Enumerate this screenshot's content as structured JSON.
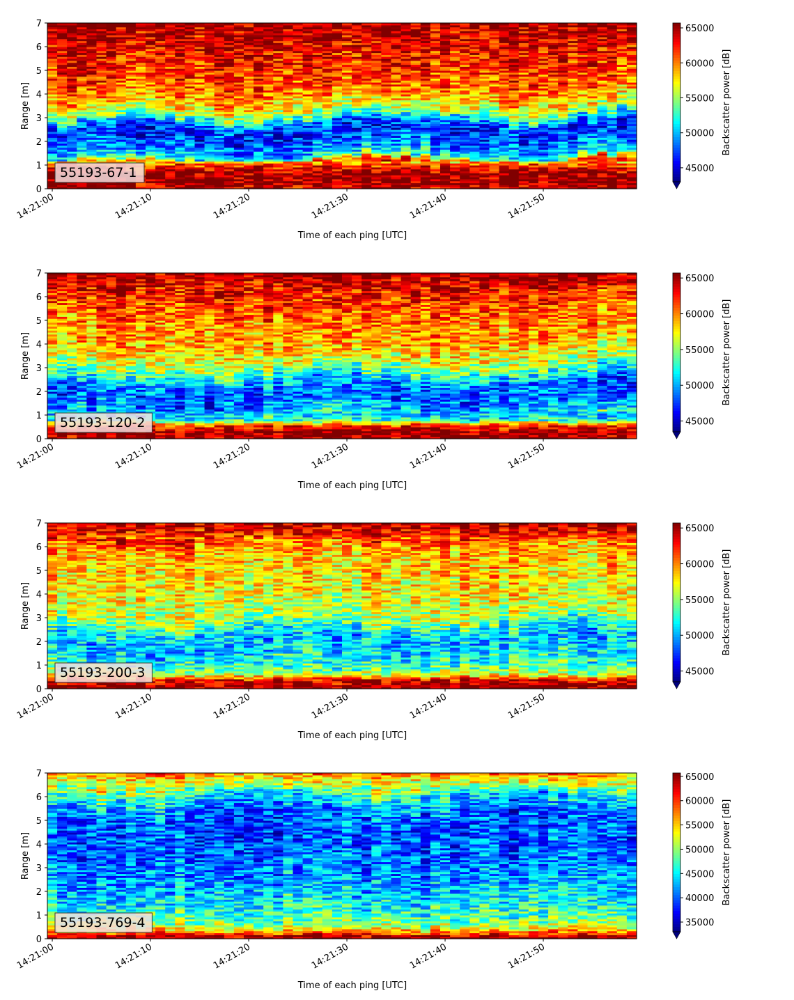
{
  "figure": {
    "panel_count": 4
  },
  "chart_data": [
    {
      "type": "heatmap",
      "annotation": "55193-67-1",
      "xlabel": "Time of each ping [UTC]",
      "ylabel": "Range [m]",
      "x_ticks": [
        "14:21:00",
        "14:21:10",
        "14:21:20",
        "14:21:30",
        "14:21:40",
        "14:21:50"
      ],
      "x_range": [
        "14:20:59.5",
        "14:21:59.5"
      ],
      "ylim": [
        0,
        7
      ],
      "y_ticks": [
        0,
        1,
        2,
        3,
        4,
        5,
        6,
        7
      ],
      "colormap": "jet",
      "colorbar": {
        "label": "Backscatter power [dB]",
        "min": 43000,
        "max": 65700,
        "ticks": [
          45000,
          50000,
          55000,
          60000,
          65000
        ],
        "extend": "min"
      },
      "profile": [
        {
          "range": 0.1,
          "level": 0.94
        },
        {
          "range": 0.3,
          "level": 0.99
        },
        {
          "range": 0.6,
          "level": 0.98
        },
        {
          "range": 0.9,
          "level": 0.9
        },
        {
          "range": 1.1,
          "level": 0.75
        },
        {
          "range": 1.3,
          "level": 0.42
        },
        {
          "range": 1.6,
          "level": 0.3
        },
        {
          "range": 2.0,
          "level": 0.22
        },
        {
          "range": 2.4,
          "level": 0.15
        },
        {
          "range": 2.8,
          "level": 0.22
        },
        {
          "range": 3.2,
          "level": 0.52
        },
        {
          "range": 3.8,
          "level": 0.7
        },
        {
          "range": 4.5,
          "level": 0.8
        },
        {
          "range": 5.5,
          "level": 0.86
        },
        {
          "range": 6.5,
          "level": 0.93
        },
        {
          "range": 7.0,
          "level": 0.97
        }
      ],
      "layer_tilt": 0.4
    },
    {
      "type": "heatmap",
      "annotation": "55193-120-2",
      "xlabel": "Time of each ping [UTC]",
      "ylabel": "Range [m]",
      "x_ticks": [
        "14:21:00",
        "14:21:10",
        "14:21:20",
        "14:21:30",
        "14:21:40",
        "14:21:50"
      ],
      "x_range": [
        "14:20:59.5",
        "14:21:59.5"
      ],
      "ylim": [
        0,
        7
      ],
      "y_ticks": [
        0,
        1,
        2,
        3,
        4,
        5,
        6,
        7
      ],
      "colormap": "jet",
      "colorbar": {
        "label": "Backscatter power [dB]",
        "min": 43500,
        "max": 65700,
        "ticks": [
          45000,
          50000,
          55000,
          60000,
          65000
        ],
        "extend": "min"
      },
      "profile": [
        {
          "range": 0.1,
          "level": 0.97
        },
        {
          "range": 0.3,
          "level": 0.99
        },
        {
          "range": 0.55,
          "level": 0.86
        },
        {
          "range": 0.8,
          "level": 0.4
        },
        {
          "range": 1.2,
          "level": 0.3
        },
        {
          "range": 1.7,
          "level": 0.22
        },
        {
          "range": 2.2,
          "level": 0.22
        },
        {
          "range": 2.7,
          "level": 0.4
        },
        {
          "range": 3.2,
          "level": 0.58
        },
        {
          "range": 4.0,
          "level": 0.7
        },
        {
          "range": 5.0,
          "level": 0.75
        },
        {
          "range": 6.0,
          "level": 0.84
        },
        {
          "range": 7.0,
          "level": 0.97
        }
      ],
      "layer_tilt": 0.35
    },
    {
      "type": "heatmap",
      "annotation": "55193-200-3",
      "xlabel": "Time of each ping [UTC]",
      "ylabel": "Range [m]",
      "x_ticks": [
        "14:21:00",
        "14:21:10",
        "14:21:20",
        "14:21:30",
        "14:21:40",
        "14:21:50"
      ],
      "x_range": [
        "14:20:59.5",
        "14:21:59.5"
      ],
      "ylim": [
        0,
        7
      ],
      "y_ticks": [
        0,
        1,
        2,
        3,
        4,
        5,
        6,
        7
      ],
      "colormap": "jet",
      "colorbar": {
        "label": "Backscatter power [dB]",
        "min": 43500,
        "max": 65700,
        "ticks": [
          45000,
          50000,
          55000,
          60000,
          65000
        ],
        "extend": "min"
      },
      "profile": [
        {
          "range": 0.1,
          "level": 0.99
        },
        {
          "range": 0.35,
          "level": 0.93
        },
        {
          "range": 0.6,
          "level": 0.58
        },
        {
          "range": 0.9,
          "level": 0.45
        },
        {
          "range": 1.4,
          "level": 0.36
        },
        {
          "range": 2.0,
          "level": 0.3
        },
        {
          "range": 2.5,
          "level": 0.38
        },
        {
          "range": 3.0,
          "level": 0.55
        },
        {
          "range": 4.0,
          "level": 0.63
        },
        {
          "range": 5.0,
          "level": 0.66
        },
        {
          "range": 6.0,
          "level": 0.72
        },
        {
          "range": 6.6,
          "level": 0.88
        },
        {
          "range": 7.0,
          "level": 0.96
        }
      ],
      "layer_tilt": 0.3
    },
    {
      "type": "heatmap",
      "annotation": "55193-769-4",
      "xlabel": "Time of each ping [UTC]",
      "ylabel": "Range [m]",
      "x_ticks": [
        "14:21:00",
        "14:21:10",
        "14:21:20",
        "14:21:30",
        "14:21:40",
        "14:21:50"
      ],
      "x_range": [
        "14:20:59.5",
        "14:21:59.5"
      ],
      "ylim": [
        0,
        7
      ],
      "y_ticks": [
        0,
        1,
        2,
        3,
        4,
        5,
        6,
        7
      ],
      "colormap": "jet",
      "colorbar": {
        "label": "Backscatter power [dB]",
        "min": 33000,
        "max": 65700,
        "ticks": [
          35000,
          40000,
          45000,
          50000,
          55000,
          60000,
          65000
        ],
        "extend": "min"
      },
      "profile": [
        {
          "range": 0.1,
          "level": 0.97
        },
        {
          "range": 0.3,
          "level": 0.72
        },
        {
          "range": 0.6,
          "level": 0.52
        },
        {
          "range": 1.0,
          "level": 0.44
        },
        {
          "range": 1.6,
          "level": 0.36
        },
        {
          "range": 2.4,
          "level": 0.28
        },
        {
          "range": 3.5,
          "level": 0.23
        },
        {
          "range": 4.5,
          "level": 0.2
        },
        {
          "range": 5.3,
          "level": 0.22
        },
        {
          "range": 6.0,
          "level": 0.36
        },
        {
          "range": 6.6,
          "level": 0.58
        },
        {
          "range": 7.0,
          "level": 0.75
        }
      ],
      "layer_tilt": 0.2
    }
  ]
}
